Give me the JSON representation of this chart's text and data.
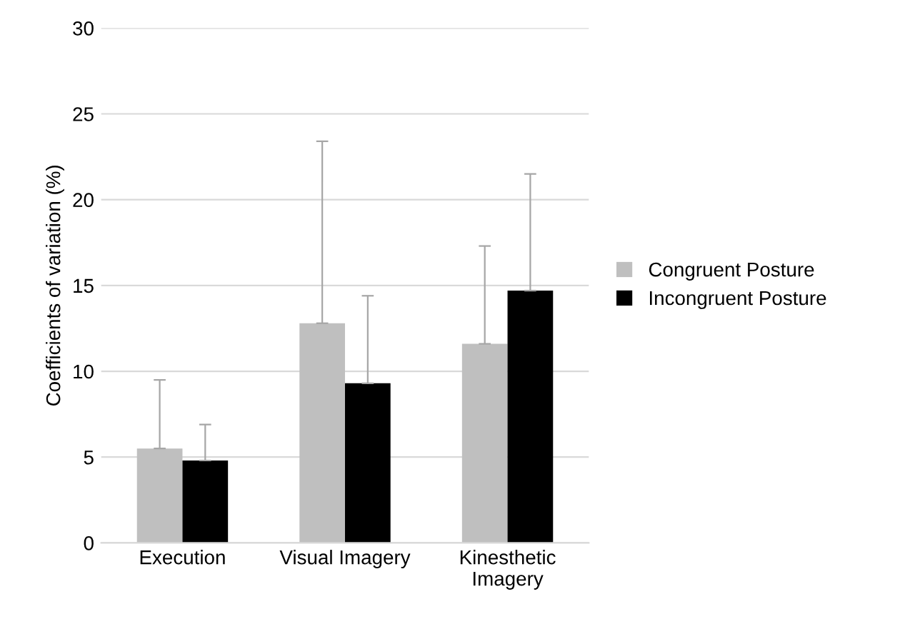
{
  "chart_data": {
    "type": "bar",
    "ylabel": "Coefficients of variation (%)",
    "categories": [
      "Execution",
      "Visual Imagery",
      "Kinesthetic\nImagery"
    ],
    "series": [
      {
        "name": "Congruent Posture",
        "color": "#bfbfbf",
        "values": [
          5.5,
          12.8,
          11.6
        ],
        "errors": [
          [
            5.5,
            9.5
          ],
          [
            12.8,
            23.4
          ],
          [
            11.6,
            17.3
          ]
        ]
      },
      {
        "name": "Incongruent Posture",
        "color": "#000000",
        "values": [
          4.8,
          9.3,
          14.7
        ],
        "errors": [
          [
            4.8,
            6.9
          ],
          [
            9.3,
            14.4
          ],
          [
            14.7,
            21.5
          ]
        ]
      }
    ],
    "ylim": [
      0,
      30
    ],
    "yticks": [
      0,
      5,
      10,
      15,
      20,
      25,
      30
    ],
    "grid": "y",
    "legend": "right"
  }
}
